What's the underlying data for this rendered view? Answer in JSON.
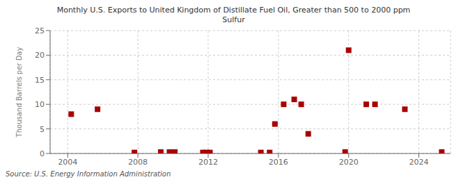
{
  "chart_data": {
    "type": "scatter",
    "title": "Monthly U.S. Exports to United Kingdom of Distillate Fuel Oil, Greater than 500 to 2000 ppm\nSulfur",
    "ylabel": "Thousand Barrels per Day",
    "annotations": [
      "Source: U.S. Energy Information Administration"
    ],
    "x": [
      2004.2,
      2005.7,
      2007.8,
      2009.3,
      2009.8,
      2010.1,
      2011.7,
      2011.9,
      2012.1,
      2015.0,
      2015.5,
      2015.8,
      2016.3,
      2016.9,
      2017.3,
      2017.7,
      2019.8,
      2020.0,
      2021.0,
      2021.5,
      2023.2,
      2025.3
    ],
    "values": [
      8.0,
      9.0,
      0.2,
      0.3,
      0.3,
      0.3,
      0.2,
      0.2,
      0.2,
      0.2,
      0.2,
      6.0,
      10.0,
      11.0,
      10.0,
      4.0,
      0.3,
      21.0,
      10.0,
      10.0,
      9.0,
      0.3
    ],
    "color": "#aa0000",
    "marker": "square",
    "xlim": [
      2003.0,
      2025.8
    ],
    "ylim": [
      0,
      25
    ],
    "xticks": [
      2004,
      2008,
      2012,
      2016,
      2020,
      2024
    ],
    "yticks": [
      0,
      5,
      10,
      15,
      20,
      25
    ],
    "grid": true
  }
}
